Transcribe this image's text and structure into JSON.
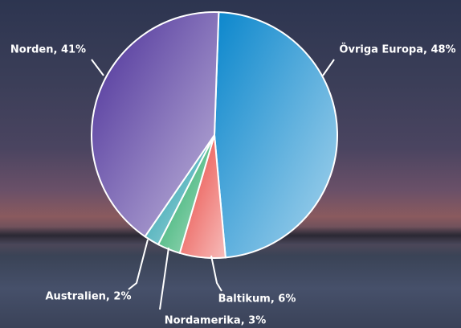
{
  "chart_data": {
    "type": "pie",
    "labels": [
      "Övriga Europa, 48%",
      "Baltikum, 6%",
      "Nordamerika, 3%",
      "Australien, 2%",
      "Norden, 41%"
    ],
    "values": [
      48,
      6,
      3,
      2,
      41
    ],
    "colors": [
      "#0a86cc",
      "#e8403a",
      "#17a45c",
      "#1899a6",
      "#4a2e98"
    ]
  }
}
